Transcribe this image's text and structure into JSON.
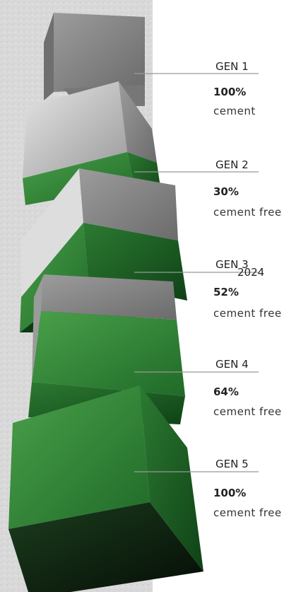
{
  "generations": [
    {
      "label": "GEN 1",
      "percent": "100%",
      "description": "cement"
    },
    {
      "label": "GEN 2",
      "percent": "30%",
      "description": "cement free"
    },
    {
      "label": "GEN 3",
      "percent": "52%",
      "description": "cement free",
      "note": "2024"
    },
    {
      "label": "GEN 4",
      "percent": "64%",
      "description": "cement free"
    },
    {
      "label": "GEN 5",
      "percent": "100%",
      "description": "cement free"
    }
  ]
}
